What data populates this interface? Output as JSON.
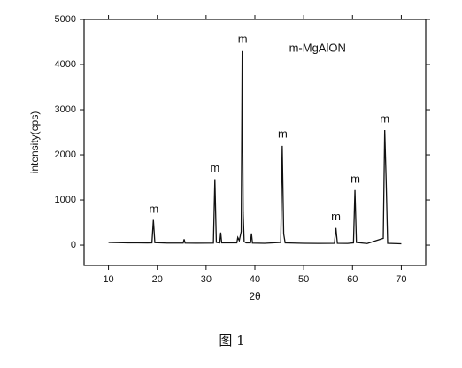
{
  "chart_data": {
    "type": "line",
    "xlabel": "2θ",
    "ylabel": "intensity(cps)",
    "caption": "图 1",
    "x": [
      10,
      12,
      14,
      16,
      18,
      18.9,
      19.2,
      19.5,
      22,
      25.3,
      25.5,
      25.7,
      28,
      31.5,
      31.8,
      32.1,
      32.8,
      33,
      33.2,
      36.3,
      36.5,
      36.8,
      37.2,
      37.4,
      37.6,
      37.8,
      38.2,
      39.1,
      39.3,
      39.5,
      42,
      45.3,
      45.6,
      45.9,
      46.2,
      50,
      53,
      56.3,
      56.6,
      56.9,
      59,
      60.2,
      60.5,
      60.8,
      63,
      66.3,
      66.6,
      66.9,
      67.2,
      70
    ],
    "series": [
      {
        "color": "#111111",
        "values": [
          60,
          55,
          50,
          50,
          48,
          50,
          560,
          55,
          45,
          45,
          130,
          45,
          42,
          45,
          1460,
          60,
          50,
          280,
          50,
          50,
          170,
          100,
          300,
          4300,
          720,
          80,
          50,
          50,
          260,
          45,
          40,
          60,
          2200,
          250,
          50,
          40,
          38,
          40,
          380,
          40,
          38,
          50,
          1220,
          60,
          35,
          150,
          2550,
          1400,
          40,
          30
        ]
      }
    ],
    "annotations": [
      {
        "text": "m-MgAlON",
        "x": 47,
        "y": 4350
      },
      {
        "text": "m",
        "x": 19.3,
        "y": 780
      },
      {
        "text": "m",
        "x": 31.8,
        "y": 1700
      },
      {
        "text": "m",
        "x": 37.5,
        "y": 4550
      },
      {
        "text": "m",
        "x": 45.7,
        "y": 2450
      },
      {
        "text": "m",
        "x": 56.6,
        "y": 620
      },
      {
        "text": "m",
        "x": 60.6,
        "y": 1450
      },
      {
        "text": "m",
        "x": 66.6,
        "y": 2780
      }
    ],
    "xlim": [
      5,
      75
    ],
    "ylim": [
      -450,
      5000
    ],
    "xticks": [
      10,
      20,
      30,
      40,
      50,
      60,
      70
    ],
    "yticks": [
      0,
      1000,
      2000,
      3000,
      4000,
      5000
    ]
  }
}
